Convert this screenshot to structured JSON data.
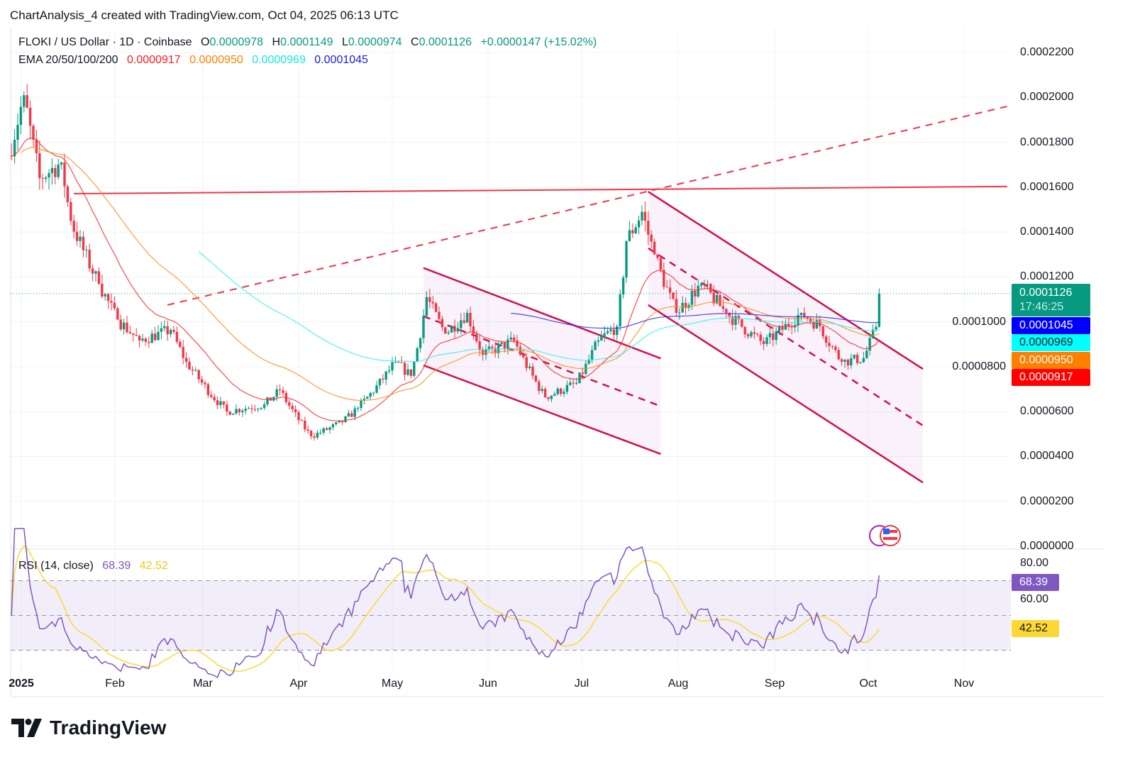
{
  "header": {
    "note": "ChartAnalysis_4 created with TradingView.com, Oct 04, 2025 06:13 UTC",
    "symbol": "FLOKI / US Dollar · 1D · Coinbase",
    "o_label": "O",
    "o": "0.0000978",
    "h_label": "H",
    "h": "0.0001149",
    "l_label": "L",
    "l": "0.0000974",
    "c_label": "C",
    "c": "0.0001126",
    "change": "+0.0000147 (+15.02%)",
    "ema_label": "EMA 20/50/100/200",
    "ema20": "0.0000917",
    "ema50": "0.0000950",
    "ema100": "0.0000969",
    "ema200": "0.0001045"
  },
  "colors": {
    "up": "#089981",
    "down": "#f23645",
    "ema20": "#ff2a2a",
    "ema50": "#ff8c1a",
    "ema100": "#36f0f0",
    "ema200": "#2a2af0",
    "rsi": "#7e57c2",
    "rsi_ma": "#fdd835",
    "drawing": "#d0104c"
  },
  "price_axis": [
    "0.0002200",
    "0.0002000",
    "0.0001800",
    "0.0001600",
    "0.0001400",
    "0.0001200",
    "0.0001000",
    "0.0000800",
    "0.0000600",
    "0.0000400",
    "0.0000200",
    "0.0000000"
  ],
  "price_tags": {
    "last": "0.0001126",
    "countdown": "17:46:25",
    "ema200": "0.0001045",
    "ema100": "0.0000969",
    "ema50": "0.0000950",
    "ema20": "0.0000917"
  },
  "rsi": {
    "label": "RSI (14, close)",
    "value": "68.39",
    "ma_value": "42.52",
    "axis": [
      "80.00",
      "60.00"
    ],
    "levels": [
      70,
      50,
      30
    ]
  },
  "time_axis": [
    "2025",
    "Feb",
    "Mar",
    "Apr",
    "May",
    "Jun",
    "Jul",
    "Aug",
    "Sep",
    "Oct",
    "Nov"
  ],
  "brand": "TradingView",
  "chart_data": {
    "type": "candlestick",
    "interval": "1D",
    "ylim": [
      0,
      0.00022
    ],
    "x_range": [
      "2024-12-29",
      "2025-11-14"
    ],
    "price_path": [
      [
        "2024-12-29",
        0.000174
      ],
      [
        "2025-01-03",
        0.000201
      ],
      [
        "2025-01-08",
        0.000164
      ],
      [
        "2025-01-15",
        0.000171
      ],
      [
        "2025-01-18",
        0.000145
      ],
      [
        "2025-01-27",
        0.000117
      ],
      [
        "2025-02-02",
        0.000101
      ],
      [
        "2025-02-09",
        9.17e-05
      ],
      [
        "2025-02-19",
        9.64e-05
      ],
      [
        "2025-02-24",
        8.22e-05
      ],
      [
        "2025-03-09",
        6e-05
      ],
      [
        "2025-03-21",
        6.32e-05
      ],
      [
        "2025-03-26",
        6.95e-05
      ],
      [
        "2025-04-05",
        4.9e-05
      ],
      [
        "2025-04-15",
        5.53e-05
      ],
      [
        "2025-04-20",
        6.16e-05
      ],
      [
        "2025-05-02",
        8.22e-05
      ],
      [
        "2025-05-07",
        7.59e-05
      ],
      [
        "2025-05-12",
        0.000111
      ],
      [
        "2025-05-18",
        9.48e-05
      ],
      [
        "2025-05-25",
        0.000104
      ],
      [
        "2025-05-30",
        8.53e-05
      ],
      [
        "2025-06-09",
        9.17e-05
      ],
      [
        "2025-06-19",
        6.64e-05
      ],
      [
        "2025-06-29",
        7.27e-05
      ],
      [
        "2025-07-06",
        9.17e-05
      ],
      [
        "2025-07-12",
        9.8e-05
      ],
      [
        "2025-07-15",
        0.000136
      ],
      [
        "2025-07-20",
        0.000149
      ],
      [
        "2025-07-24",
        0.00013
      ],
      [
        "2025-07-31",
        0.000104
      ],
      [
        "2025-08-08",
        0.000117
      ],
      [
        "2025-08-16",
        0.000104
      ],
      [
        "2025-08-28",
        9.01e-05
      ],
      [
        "2025-09-09",
        0.000104
      ],
      [
        "2025-09-15",
        9.8e-05
      ],
      [
        "2025-09-22",
        8.22e-05
      ],
      [
        "2025-09-29",
        8.38e-05
      ],
      [
        "2025-10-03",
        9.78e-05
      ]
    ],
    "last_candle": {
      "date": "2025-10-04",
      "open": 9.78e-05,
      "high": 0.0001149,
      "low": 9.74e-05,
      "close": 0.0001126
    },
    "indicators": [
      "EMA 20",
      "EMA 50",
      "EMA 100",
      "EMA 200",
      "RSI 14",
      "RSI MA"
    ],
    "drawings": [
      {
        "type": "horizontal-resistance",
        "style": "solid",
        "from": [
          "2025-01-19",
          0.0001571
        ],
        "to": [
          "2025-11-14",
          0.0001603
        ]
      },
      {
        "type": "trendline",
        "style": "dashed",
        "from": [
          "2025-02-18",
          0.0001075
        ],
        "to": [
          "2025-11-14",
          0.000196
        ]
      },
      {
        "type": "channel",
        "from_date": "2025-05-11",
        "to_date": "2025-07-26",
        "upper": [
          0.000124,
          8.37e-05
        ],
        "mid": [
          0.0001025,
          6.24e-05
        ],
        "lower": [
          8.06e-05,
          4.11e-05
        ]
      },
      {
        "type": "channel",
        "from_date": "2025-07-22",
        "to_date": "2025-10-18",
        "upper": [
          0.000158,
          7.9e-05
        ],
        "mid": [
          0.0001328,
          5.38e-05
        ],
        "lower": [
          0.0001075,
          2.84e-05
        ]
      }
    ]
  }
}
